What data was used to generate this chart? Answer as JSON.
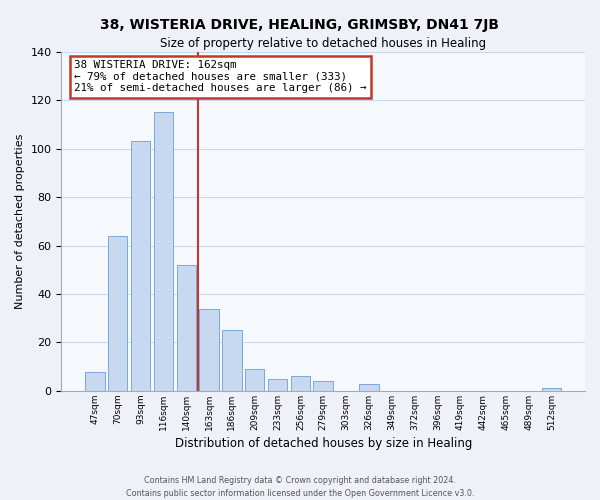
{
  "title": "38, WISTERIA DRIVE, HEALING, GRIMSBY, DN41 7JB",
  "subtitle": "Size of property relative to detached houses in Healing",
  "xlabel": "Distribution of detached houses by size in Healing",
  "ylabel": "Number of detached properties",
  "bar_labels": [
    "47sqm",
    "70sqm",
    "93sqm",
    "116sqm",
    "140sqm",
    "163sqm",
    "186sqm",
    "209sqm",
    "233sqm",
    "256sqm",
    "279sqm",
    "303sqm",
    "326sqm",
    "349sqm",
    "372sqm",
    "396sqm",
    "419sqm",
    "442sqm",
    "465sqm",
    "489sqm",
    "512sqm"
  ],
  "bar_values": [
    8,
    64,
    103,
    115,
    52,
    34,
    25,
    9,
    5,
    6,
    4,
    0,
    3,
    0,
    0,
    0,
    0,
    0,
    0,
    0,
    1
  ],
  "bar_color": "#c6d9f0",
  "bar_edge_color": "#7da7d9",
  "annotation_line1": "38 WISTERIA DRIVE: 162sqm",
  "annotation_line2": "← 79% of detached houses are smaller (333)",
  "annotation_line3": "21% of semi-detached houses are larger (86) →",
  "annotation_box_color": "#ffffff",
  "annotation_box_edge": "#c0392b",
  "ref_line_color": "#c0392b",
  "ylim": [
    0,
    140
  ],
  "yticks": [
    0,
    20,
    40,
    60,
    80,
    100,
    120,
    140
  ],
  "footer1": "Contains HM Land Registry data © Crown copyright and database right 2024.",
  "footer2": "Contains public sector information licensed under the Open Government Licence v3.0.",
  "background_color": "#eef2f8",
  "plot_bg_color": "#f5f8fd",
  "grid_color": "#c8d8ee"
}
